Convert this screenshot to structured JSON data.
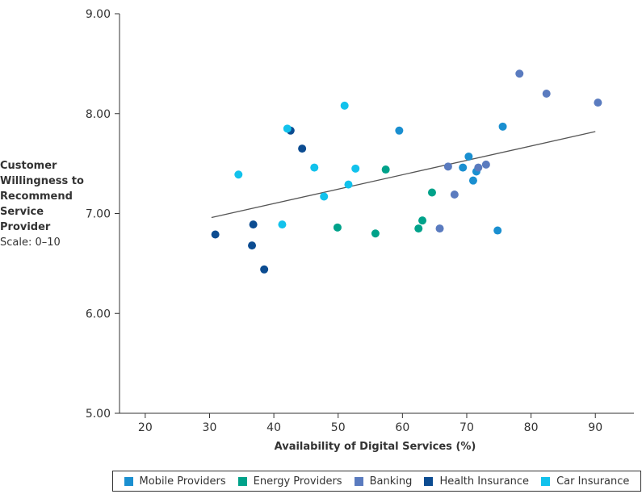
{
  "chart_data": {
    "type": "scatter",
    "title": "",
    "xlabel": "Availability of Digital Services (%)",
    "ylabel": "Customer Willingness to Recommend Service Provider",
    "ylabel_sub": "Scale: 0–10",
    "xlim": [
      16,
      96
    ],
    "ylim": [
      5.0,
      9.0
    ],
    "x_ticks": [
      20,
      30,
      40,
      50,
      60,
      70,
      80,
      90
    ],
    "y_ticks": [
      "5.00",
      "6.00",
      "7.00",
      "8.00",
      "9.00"
    ],
    "y_tick_values": [
      5,
      6,
      7,
      8,
      9
    ],
    "grid": false,
    "legend_position": "bottom",
    "trendline": {
      "x": [
        30.3,
        90.0
      ],
      "y": [
        6.96,
        7.82
      ]
    },
    "series": [
      {
        "name": "Mobile Providers",
        "color": "#1a8fd0",
        "points": [
          [
            59.5,
            7.83
          ],
          [
            69.4,
            7.46
          ],
          [
            70.3,
            7.57
          ],
          [
            71.0,
            7.33
          ],
          [
            71.5,
            7.42
          ],
          [
            74.8,
            6.83
          ],
          [
            75.6,
            7.87
          ]
        ]
      },
      {
        "name": "Energy Providers",
        "color": "#00a28a",
        "points": [
          [
            49.9,
            6.86
          ],
          [
            55.8,
            6.8
          ],
          [
            57.4,
            7.44
          ],
          [
            62.5,
            6.85
          ],
          [
            63.1,
            6.93
          ],
          [
            64.6,
            7.21
          ]
        ]
      },
      {
        "name": "Banking",
        "color": "#5a7bbf",
        "points": [
          [
            65.8,
            6.85
          ],
          [
            67.1,
            7.47
          ],
          [
            68.1,
            7.19
          ],
          [
            71.8,
            7.46
          ],
          [
            73.0,
            7.49
          ],
          [
            78.2,
            8.4
          ],
          [
            82.4,
            8.2
          ],
          [
            90.4,
            8.11
          ]
        ]
      },
      {
        "name": "Health Insurance",
        "color": "#0c4c91",
        "points": [
          [
            30.9,
            6.79
          ],
          [
            36.6,
            6.68
          ],
          [
            36.8,
            6.89
          ],
          [
            38.5,
            6.44
          ],
          [
            42.6,
            7.83
          ],
          [
            44.4,
            7.65
          ]
        ]
      },
      {
        "name": "Car Insurance",
        "color": "#12c2ec",
        "points": [
          [
            34.5,
            7.39
          ],
          [
            41.3,
            6.89
          ],
          [
            42.1,
            7.85
          ],
          [
            46.3,
            7.46
          ],
          [
            47.8,
            7.17
          ],
          [
            51.0,
            8.08
          ],
          [
            51.6,
            7.29
          ],
          [
            52.7,
            7.45
          ]
        ]
      }
    ]
  }
}
